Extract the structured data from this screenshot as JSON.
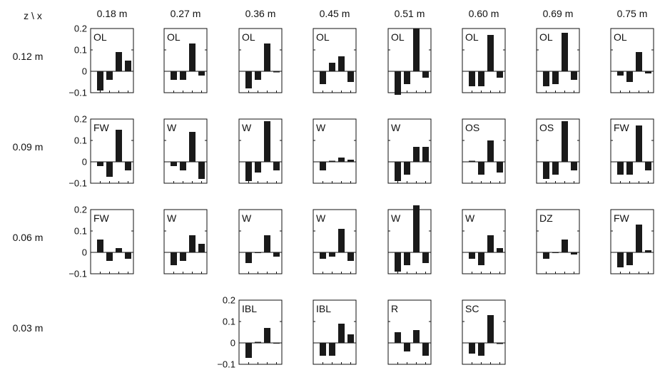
{
  "corner_label": "z \\ x",
  "x_headers": [
    "0.18 m",
    "0.27 m",
    "0.36 m",
    "0.45 m",
    "0.51 m",
    "0.60 m",
    "0.69 m",
    "0.75 m"
  ],
  "z_headers": [
    "0.12 m",
    "0.09 m",
    "0.06 m",
    "0.03 m"
  ],
  "y_tick_labels": [
    "0.2",
    "0.1",
    "0",
    "−0.1"
  ],
  "bar_color": "#1a1a1a",
  "chart_data": {
    "type": "bar",
    "ylim": [
      -0.1,
      0.2
    ],
    "yticks": [
      0.2,
      0.1,
      0,
      -0.1
    ],
    "grid": false,
    "panels": [
      {
        "row": 0,
        "col": 0,
        "label": "OL",
        "values": [
          -0.09,
          -0.04,
          0.09,
          0.05
        ],
        "show_yticks": true
      },
      {
        "row": 0,
        "col": 1,
        "label": "OL",
        "values": [
          -0.04,
          -0.04,
          0.13,
          -0.02
        ]
      },
      {
        "row": 0,
        "col": 2,
        "label": "OL",
        "values": [
          -0.08,
          -0.04,
          0.13,
          -0.005
        ]
      },
      {
        "row": 0,
        "col": 3,
        "label": "OL",
        "values": [
          -0.06,
          0.04,
          0.07,
          -0.05
        ]
      },
      {
        "row": 0,
        "col": 4,
        "label": "OL",
        "values": [
          -0.11,
          -0.06,
          0.2,
          -0.03
        ]
      },
      {
        "row": 0,
        "col": 5,
        "label": "OL",
        "values": [
          -0.07,
          -0.07,
          0.17,
          -0.03
        ]
      },
      {
        "row": 0,
        "col": 6,
        "label": "OL",
        "values": [
          -0.07,
          -0.06,
          0.18,
          -0.04
        ]
      },
      {
        "row": 0,
        "col": 7,
        "label": "OL",
        "values": [
          -0.02,
          -0.05,
          0.09,
          -0.01
        ]
      },
      {
        "row": 1,
        "col": 0,
        "label": "FW",
        "values": [
          -0.02,
          -0.07,
          0.15,
          -0.04
        ],
        "show_yticks": true
      },
      {
        "row": 1,
        "col": 1,
        "label": "W",
        "values": [
          -0.02,
          -0.04,
          0.14,
          -0.08
        ]
      },
      {
        "row": 1,
        "col": 2,
        "label": "W",
        "values": [
          -0.09,
          -0.05,
          0.19,
          -0.04
        ]
      },
      {
        "row": 1,
        "col": 3,
        "label": "W",
        "values": [
          -0.04,
          0.005,
          0.02,
          0.01
        ]
      },
      {
        "row": 1,
        "col": 4,
        "label": "W",
        "values": [
          -0.09,
          -0.06,
          0.07,
          0.07
        ]
      },
      {
        "row": 1,
        "col": 5,
        "label": "OS",
        "values": [
          0.005,
          -0.06,
          0.1,
          -0.05
        ]
      },
      {
        "row": 1,
        "col": 6,
        "label": "OS",
        "values": [
          -0.08,
          -0.06,
          0.19,
          -0.04
        ]
      },
      {
        "row": 1,
        "col": 7,
        "label": "FW",
        "values": [
          -0.06,
          -0.06,
          0.17,
          -0.04
        ]
      },
      {
        "row": 2,
        "col": 0,
        "label": "FW",
        "values": [
          0.06,
          -0.04,
          0.02,
          -0.03
        ],
        "show_yticks": true
      },
      {
        "row": 2,
        "col": 1,
        "label": "W",
        "values": [
          -0.06,
          -0.04,
          0.08,
          0.04
        ]
      },
      {
        "row": 2,
        "col": 2,
        "label": "W",
        "values": [
          -0.05,
          0.0,
          0.08,
          -0.02
        ]
      },
      {
        "row": 2,
        "col": 3,
        "label": "W",
        "values": [
          -0.03,
          -0.02,
          0.11,
          -0.04
        ]
      },
      {
        "row": 2,
        "col": 4,
        "label": "W",
        "values": [
          -0.09,
          -0.06,
          0.22,
          -0.05
        ]
      },
      {
        "row": 2,
        "col": 5,
        "label": "W",
        "values": [
          -0.03,
          -0.06,
          0.08,
          0.02
        ]
      },
      {
        "row": 2,
        "col": 6,
        "label": "DZ",
        "values": [
          -0.03,
          0.0,
          0.06,
          -0.01
        ]
      },
      {
        "row": 2,
        "col": 7,
        "label": "FW",
        "values": [
          -0.07,
          -0.06,
          0.13,
          0.01
        ]
      },
      {
        "row": 3,
        "col": 2,
        "label": "IBL",
        "values": [
          -0.07,
          0.005,
          0.07,
          0.0
        ],
        "show_yticks": true
      },
      {
        "row": 3,
        "col": 3,
        "label": "IBL",
        "values": [
          -0.06,
          -0.06,
          0.09,
          0.04
        ]
      },
      {
        "row": 3,
        "col": 4,
        "label": "R",
        "values": [
          0.05,
          -0.04,
          0.06,
          -0.06
        ]
      },
      {
        "row": 3,
        "col": 5,
        "label": "SC",
        "values": [
          -0.05,
          -0.06,
          0.13,
          -0.005
        ]
      }
    ]
  }
}
